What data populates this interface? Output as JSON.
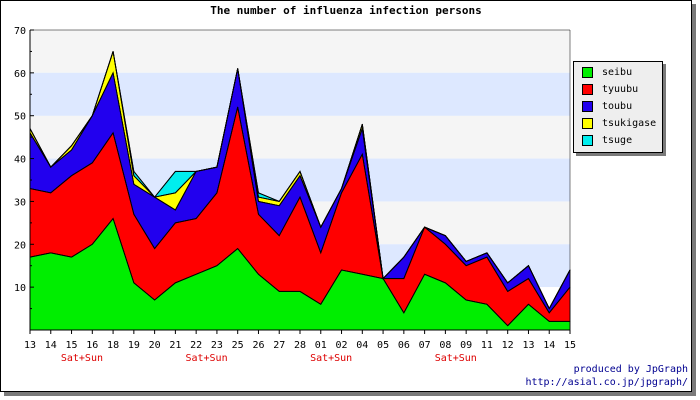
{
  "chart_data": {
    "type": "area",
    "stacked": true,
    "title": "The number of influenza infection persons",
    "xlabel": "",
    "ylabel": "",
    "ylim": [
      0,
      70
    ],
    "yticks": [
      10,
      20,
      30,
      40,
      50,
      60,
      70
    ],
    "categories": [
      "13",
      "14",
      "15",
      "16",
      "18",
      "19",
      "20",
      "21",
      "22",
      "23",
      "25",
      "26",
      "27",
      "28",
      "01",
      "02",
      "04",
      "05",
      "06",
      "07",
      "08",
      "09",
      "11",
      "12",
      "13",
      "14",
      "15"
    ],
    "weekend_marks": [
      {
        "index": 2.5,
        "label": "Sat+Sun"
      },
      {
        "index": 8.5,
        "label": "Sat+Sun"
      },
      {
        "index": 14.5,
        "label": "Sat+Sun"
      },
      {
        "index": 20.5,
        "label": "Sat+Sun"
      }
    ],
    "series": [
      {
        "name": "seibu",
        "color": "#00ee00",
        "values": [
          17,
          18,
          17,
          20,
          26,
          11,
          7,
          11,
          13,
          15,
          19,
          13,
          9,
          9,
          6,
          14,
          13,
          12,
          4,
          13,
          11,
          7,
          6,
          1,
          6,
          2,
          2
        ]
      },
      {
        "name": "tyuubu",
        "color": "#ff0000",
        "values": [
          16,
          14,
          19,
          19,
          20,
          16,
          12,
          14,
          13,
          17,
          33,
          14,
          13,
          22,
          12,
          18,
          28,
          0,
          8,
          11,
          9,
          8,
          11,
          8,
          6,
          2,
          8
        ]
      },
      {
        "name": "toubu",
        "color": "#2200ee",
        "values": [
          13,
          6,
          6,
          11,
          14,
          7,
          12,
          3,
          11,
          6,
          9,
          3,
          7,
          5,
          6,
          1,
          6,
          0,
          5,
          0,
          2,
          1,
          1,
          2,
          3,
          1,
          4
        ]
      },
      {
        "name": "tsukigase",
        "color": "#ffff00",
        "values": [
          1,
          0,
          1,
          0,
          5,
          2,
          0,
          4,
          0,
          0,
          0,
          1,
          1,
          1,
          0,
          0,
          1,
          0,
          0,
          0,
          0,
          0,
          0,
          0,
          0,
          0,
          0
        ]
      },
      {
        "name": "tsuge",
        "color": "#00eeee",
        "values": [
          0,
          0,
          0,
          0,
          0,
          1,
          0,
          5,
          0,
          0,
          0,
          1,
          0,
          0,
          0,
          0,
          0,
          0,
          0,
          0,
          0,
          0,
          0,
          0,
          0,
          0,
          0
        ]
      }
    ],
    "legend_position": "right",
    "grid": true
  },
  "credit": {
    "line1": "produced by JpGraph",
    "line2": "http://asial.co.jp/jpgraph/"
  }
}
